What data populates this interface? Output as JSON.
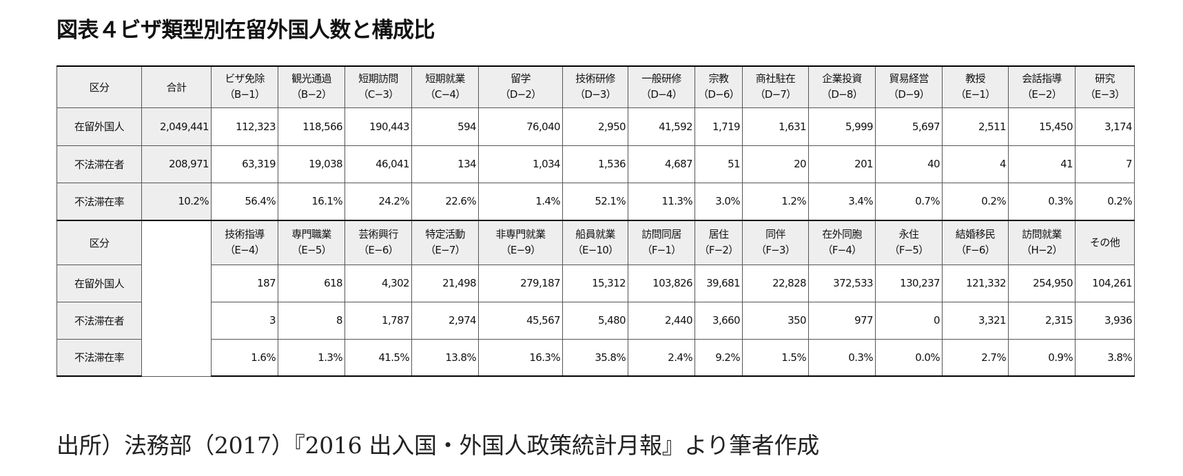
{
  "title": "図表４ビザ類型別在留外国人数と構成比",
  "source": "出所）法務部（2017）『2016 出入国・外国人政策統計月報』より筆者作成",
  "table1": {
    "section_label": "区分",
    "total_label": "合計",
    "headers": [
      {
        "name": "ビザ免除",
        "code": "（B−1）"
      },
      {
        "name": "観光通過",
        "code": "（B−2）"
      },
      {
        "name": "短期訪問",
        "code": "（C−3）"
      },
      {
        "name": "短期就業",
        "code": "（C−4）"
      },
      {
        "name": "留学",
        "code": "（D−2）"
      },
      {
        "name": "技術研修",
        "code": "（D−3）"
      },
      {
        "name": "一般研修",
        "code": "（D−4）"
      },
      {
        "name": "宗教",
        "code": "（D−6）"
      },
      {
        "name": "商社駐在",
        "code": "（D−7）"
      },
      {
        "name": "企業投資",
        "code": "（D−8）"
      },
      {
        "name": "貿易経営",
        "code": "（D−9）"
      },
      {
        "name": "教授",
        "code": "（E−1）"
      },
      {
        "name": "会話指導",
        "code": "（E−2）"
      },
      {
        "name": "研究",
        "code": "（E−3）"
      }
    ],
    "rows": [
      {
        "label": "在留外国人",
        "total": "2,049,441",
        "values": [
          "112,323",
          "118,566",
          "190,443",
          "594",
          "76,040",
          "2,950",
          "41,592",
          "1,719",
          "1,631",
          "5,999",
          "5,697",
          "2,511",
          "15,450",
          "3,174"
        ]
      },
      {
        "label": "不法滞在者",
        "total": "208,971",
        "values": [
          "63,319",
          "19,038",
          "46,041",
          "134",
          "1,034",
          "1,536",
          "4,687",
          "51",
          "20",
          "201",
          "40",
          "4",
          "41",
          "7"
        ]
      },
      {
        "label": "不法滞在率",
        "total": "10.2%",
        "values": [
          "56.4%",
          "16.1%",
          "24.2%",
          "22.6%",
          "1.4%",
          "52.1%",
          "11.3%",
          "3.0%",
          "1.2%",
          "3.4%",
          "0.7%",
          "0.2%",
          "0.3%",
          "0.2%"
        ]
      }
    ]
  },
  "table2": {
    "section_label": "区分",
    "headers": [
      {
        "name": "技術指導",
        "code": "（E−4）"
      },
      {
        "name": "専門職業",
        "code": "（E−5）"
      },
      {
        "name": "芸術興行",
        "code": "（E−6）"
      },
      {
        "name": "特定活動",
        "code": "（E−7）"
      },
      {
        "name": "非専門就業",
        "code": "（E−9）"
      },
      {
        "name": "船員就業",
        "code": "（E−10）"
      },
      {
        "name": "訪問同居",
        "code": "（F−1）"
      },
      {
        "name": "居住",
        "code": "（F−2）"
      },
      {
        "name": "同伴",
        "code": "（F−3）"
      },
      {
        "name": "在外同胞",
        "code": "（F−4）"
      },
      {
        "name": "永住",
        "code": "（F−5）"
      },
      {
        "name": "結婚移民",
        "code": "（F−6）"
      },
      {
        "name": "訪問就業",
        "code": "（H−2）"
      },
      {
        "name": "その他",
        "code": ""
      }
    ],
    "rows": [
      {
        "label": "在留外国人",
        "values": [
          "187",
          "618",
          "4,302",
          "21,498",
          "279,187",
          "15,312",
          "103,826",
          "39,681",
          "22,828",
          "372,533",
          "130,237",
          "121,332",
          "254,950",
          "104,261"
        ]
      },
      {
        "label": "不法滞在者",
        "values": [
          "3",
          "8",
          "1,787",
          "2,974",
          "45,567",
          "5,480",
          "2,440",
          "3,660",
          "350",
          "977",
          "0",
          "3,321",
          "2,315",
          "3,936"
        ]
      },
      {
        "label": "不法滞在率",
        "values": [
          "1.6%",
          "1.3%",
          "41.5%",
          "13.8%",
          "16.3%",
          "35.8%",
          "2.4%",
          "9.2%",
          "1.5%",
          "0.3%",
          "0.0%",
          "2.7%",
          "0.9%",
          "3.8%"
        ]
      }
    ]
  }
}
